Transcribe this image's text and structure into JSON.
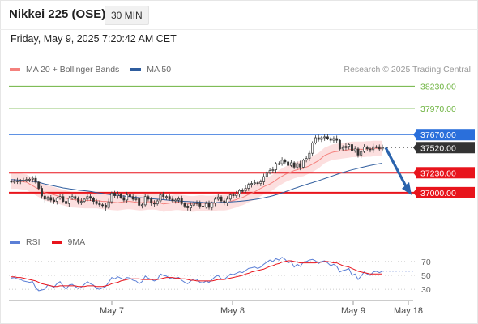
{
  "header": {
    "instrument": "Nikkei 225 (OSE)",
    "timeframe": "30 MIN",
    "datetime": "Friday, May 9, 2025 7:20:42 AM CET"
  },
  "legend": {
    "bollinger": {
      "label": "MA 20 + Bollinger Bands",
      "color": "#f4817d"
    },
    "ma50": {
      "label": "MA 50",
      "color": "#2f5d9e"
    },
    "copyright": "Research © 2025 Trading Central"
  },
  "rsi_legend": {
    "rsi": {
      "label": "RSI",
      "color": "#5b7fd6"
    },
    "ma9": {
      "label": "9MA",
      "color": "#e8141c"
    }
  },
  "colors": {
    "resistance": "#6db33f",
    "pivot": "#2a6fdb",
    "support": "#e8141c",
    "last_price": "#333333",
    "arrow": "#2a63ad",
    "band_fill": "#fbd9d9",
    "candle": "#333333"
  },
  "chart_data": [
    {
      "type": "candlestick",
      "title": "Nikkei 225 (OSE) 30 MIN",
      "ylim": [
        36550,
        38420
      ],
      "x_ticks": [
        "May 7",
        "May 8",
        "May 9",
        "May 18"
      ],
      "levels": [
        {
          "label": "38230.00",
          "value": 38230,
          "kind": "resistance"
        },
        {
          "label": "37970.00",
          "value": 37970,
          "kind": "resistance"
        },
        {
          "label": "37670.00",
          "value": 37670,
          "kind": "pivot"
        },
        {
          "label": "37520.00",
          "value": 37520,
          "kind": "last"
        },
        {
          "label": "37230.00",
          "value": 37230,
          "kind": "support"
        },
        {
          "label": "37000.00",
          "value": 37000,
          "kind": "support"
        }
      ],
      "forecast_arrow": {
        "from": 37520,
        "to": 37000
      },
      "close_series": [
        37127,
        37130,
        37135,
        37140,
        37145,
        37150,
        37155,
        37165,
        37120,
        37050,
        36960,
        36925,
        36945,
        36915,
        36900,
        36935,
        36955,
        36900,
        36875,
        36935,
        36955,
        36930,
        36895,
        36900,
        36925,
        36955,
        36935,
        36900,
        36875,
        36860,
        36855,
        36830,
        36895,
        36995,
        36965,
        36980,
        36945,
        36915,
        36975,
        36955,
        36925,
        36930,
        36855,
        36860,
        36955,
        36925,
        36880,
        36870,
        36905,
        36975,
        36955,
        36955,
        36925,
        36905,
        36915,
        36930,
        36875,
        36845,
        36825,
        36855,
        36885,
        36875,
        36845,
        36835,
        36875,
        36830,
        36880,
        36925,
        36950,
        36905,
        36885,
        36925,
        36975,
        36965,
        36985,
        37025,
        37020,
        37050,
        37095,
        37105,
        37115,
        37105,
        37125,
        37185,
        37235,
        37255,
        37265,
        37335,
        37335,
        37375,
        37355,
        37315,
        37345,
        37295,
        37335,
        37295,
        37375,
        37395,
        37455,
        37575,
        37635,
        37615,
        37635,
        37645,
        37625,
        37605,
        37625,
        37605,
        37505,
        37520,
        37535,
        37555,
        37485,
        37505,
        37435,
        37475,
        37525,
        37505,
        37495,
        37530,
        37530,
        37505,
        37520
      ],
      "ma20_series": [
        37135,
        37135,
        37135,
        37130,
        37125,
        37120,
        37100,
        37080,
        37060,
        37040,
        37020,
        37000,
        36990,
        36985,
        36975,
        36965,
        36955,
        36945,
        36935,
        36925,
        36920,
        36918,
        36915,
        36912,
        36910,
        36910,
        36910,
        36910,
        36910,
        36905,
        36900,
        36900,
        36895,
        36890,
        36888,
        36885,
        36890,
        36895,
        36900,
        36900,
        36895,
        36890,
        36885,
        36885,
        36890,
        36895,
        36895,
        36895,
        36890,
        36880,
        36870,
        36875,
        36880,
        36885,
        36890,
        36890,
        36885,
        36880,
        36875,
        36870,
        36870,
        36875,
        36880,
        36880,
        36875,
        36875,
        36875,
        36880,
        36885,
        36885,
        36885,
        36890,
        36900,
        36910,
        36920,
        36935,
        36945,
        36960,
        36980,
        36995,
        37010,
        37030,
        37050,
        37070,
        37085,
        37100,
        37120,
        37145,
        37170,
        37190,
        37210,
        37225,
        37240,
        37255,
        37265,
        37275,
        37280,
        37295,
        37310,
        37330,
        37350,
        37370,
        37400,
        37430,
        37445,
        37460,
        37470,
        37475,
        37480,
        37485,
        37490,
        37495,
        37500,
        37500,
        37500,
        37500,
        37500,
        37505,
        37505,
        37510,
        37510,
        37510,
        37510
      ],
      "ma50_series": [
        37150,
        37148,
        37146,
        37144,
        37142,
        37140,
        37135,
        37130,
        37125,
        37120,
        37110,
        37100,
        37092,
        37085,
        37078,
        37070,
        37063,
        37055,
        37050,
        37045,
        37040,
        37035,
        37030,
        37026,
        37022,
        37018,
        37014,
        37008,
        37002,
        36996,
        36990,
        36985,
        36980,
        36975,
        36972,
        36968,
        36964,
        36960,
        36957,
        36954,
        36950,
        36946,
        36943,
        36940,
        36937,
        36934,
        36931,
        36928,
        36925,
        36922,
        36919,
        36916,
        36913,
        36910,
        36907,
        36904,
        36902,
        36900,
        36898,
        36896,
        36894,
        36892,
        36890,
        36888,
        36887,
        36886,
        36886,
        36887,
        36888,
        36889,
        36890,
        36892,
        36894,
        36896,
        36898,
        36901,
        36904,
        36908,
        36912,
        36917,
        36922,
        36928,
        36934,
        36941,
        36948,
        36956,
        36965,
        36975,
        36986,
        36998,
        37010,
        37022,
        37035,
        37048,
        37060,
        37072,
        37083,
        37094,
        37105,
        37116,
        37127,
        37138,
        37150,
        37162,
        37174,
        37186,
        37198,
        37210,
        37222,
        37234,
        37244,
        37254,
        37263,
        37272,
        37281,
        37290,
        37298,
        37306,
        37314,
        37321,
        37328,
        37334,
        37340
      ]
    },
    {
      "type": "line",
      "title": "RSI",
      "ylim": [
        15,
        85
      ],
      "y_ticks": [
        70,
        50,
        30
      ],
      "series_names": [
        "RSI",
        "9MA"
      ],
      "rsi_series": [
        46,
        47,
        45,
        44,
        42,
        41,
        40,
        41,
        32,
        28,
        29,
        30,
        36,
        35,
        33,
        38,
        41,
        35,
        30,
        36,
        37,
        34,
        31,
        33,
        37,
        41,
        38,
        36,
        31,
        30,
        32,
        34,
        40,
        47,
        45,
        48,
        46,
        44,
        47,
        46,
        43,
        42,
        38,
        41,
        49,
        46,
        44,
        42,
        44,
        52,
        50,
        49,
        46,
        45,
        46,
        47,
        43,
        40,
        38,
        42,
        45,
        44,
        40,
        39,
        42,
        40,
        44,
        48,
        50,
        45,
        44,
        48,
        52,
        51,
        53,
        55,
        54,
        57,
        60,
        61,
        62,
        60,
        62,
        66,
        69,
        72,
        70,
        74,
        72,
        76,
        73,
        68,
        70,
        62,
        66,
        63,
        69,
        70,
        72,
        73,
        71,
        67,
        70,
        71,
        68,
        64,
        66,
        63,
        55,
        57,
        58,
        60,
        50,
        52,
        44,
        49,
        55,
        52,
        50,
        55,
        56,
        54,
        56
      ],
      "ma9_series": [
        48,
        48,
        47,
        47,
        46,
        45,
        44,
        43,
        42,
        40,
        38,
        37,
        36,
        35,
        34,
        34,
        35,
        35,
        35,
        35,
        35,
        35,
        34,
        34,
        34,
        35,
        35,
        35,
        34,
        34,
        34,
        35,
        36,
        38,
        39,
        40,
        42,
        43,
        44,
        45,
        45,
        45,
        45,
        44,
        44,
        44,
        44,
        44,
        44,
        45,
        46,
        47,
        47,
        47,
        46,
        46,
        45,
        45,
        44,
        43,
        43,
        42,
        42,
        42,
        42,
        42,
        42,
        43,
        44,
        44,
        44,
        45,
        46,
        47,
        48,
        49,
        50,
        52,
        53,
        55,
        56,
        57,
        58,
        59,
        61,
        63,
        64,
        66,
        67,
        69,
        70,
        71,
        71,
        70,
        69,
        68,
        68,
        68,
        68,
        68,
        68,
        69,
        69,
        70,
        70,
        69,
        68,
        68,
        66,
        64,
        63,
        62,
        60,
        58,
        56,
        55,
        54,
        53,
        52,
        52,
        52,
        52,
        52
      ]
    }
  ]
}
